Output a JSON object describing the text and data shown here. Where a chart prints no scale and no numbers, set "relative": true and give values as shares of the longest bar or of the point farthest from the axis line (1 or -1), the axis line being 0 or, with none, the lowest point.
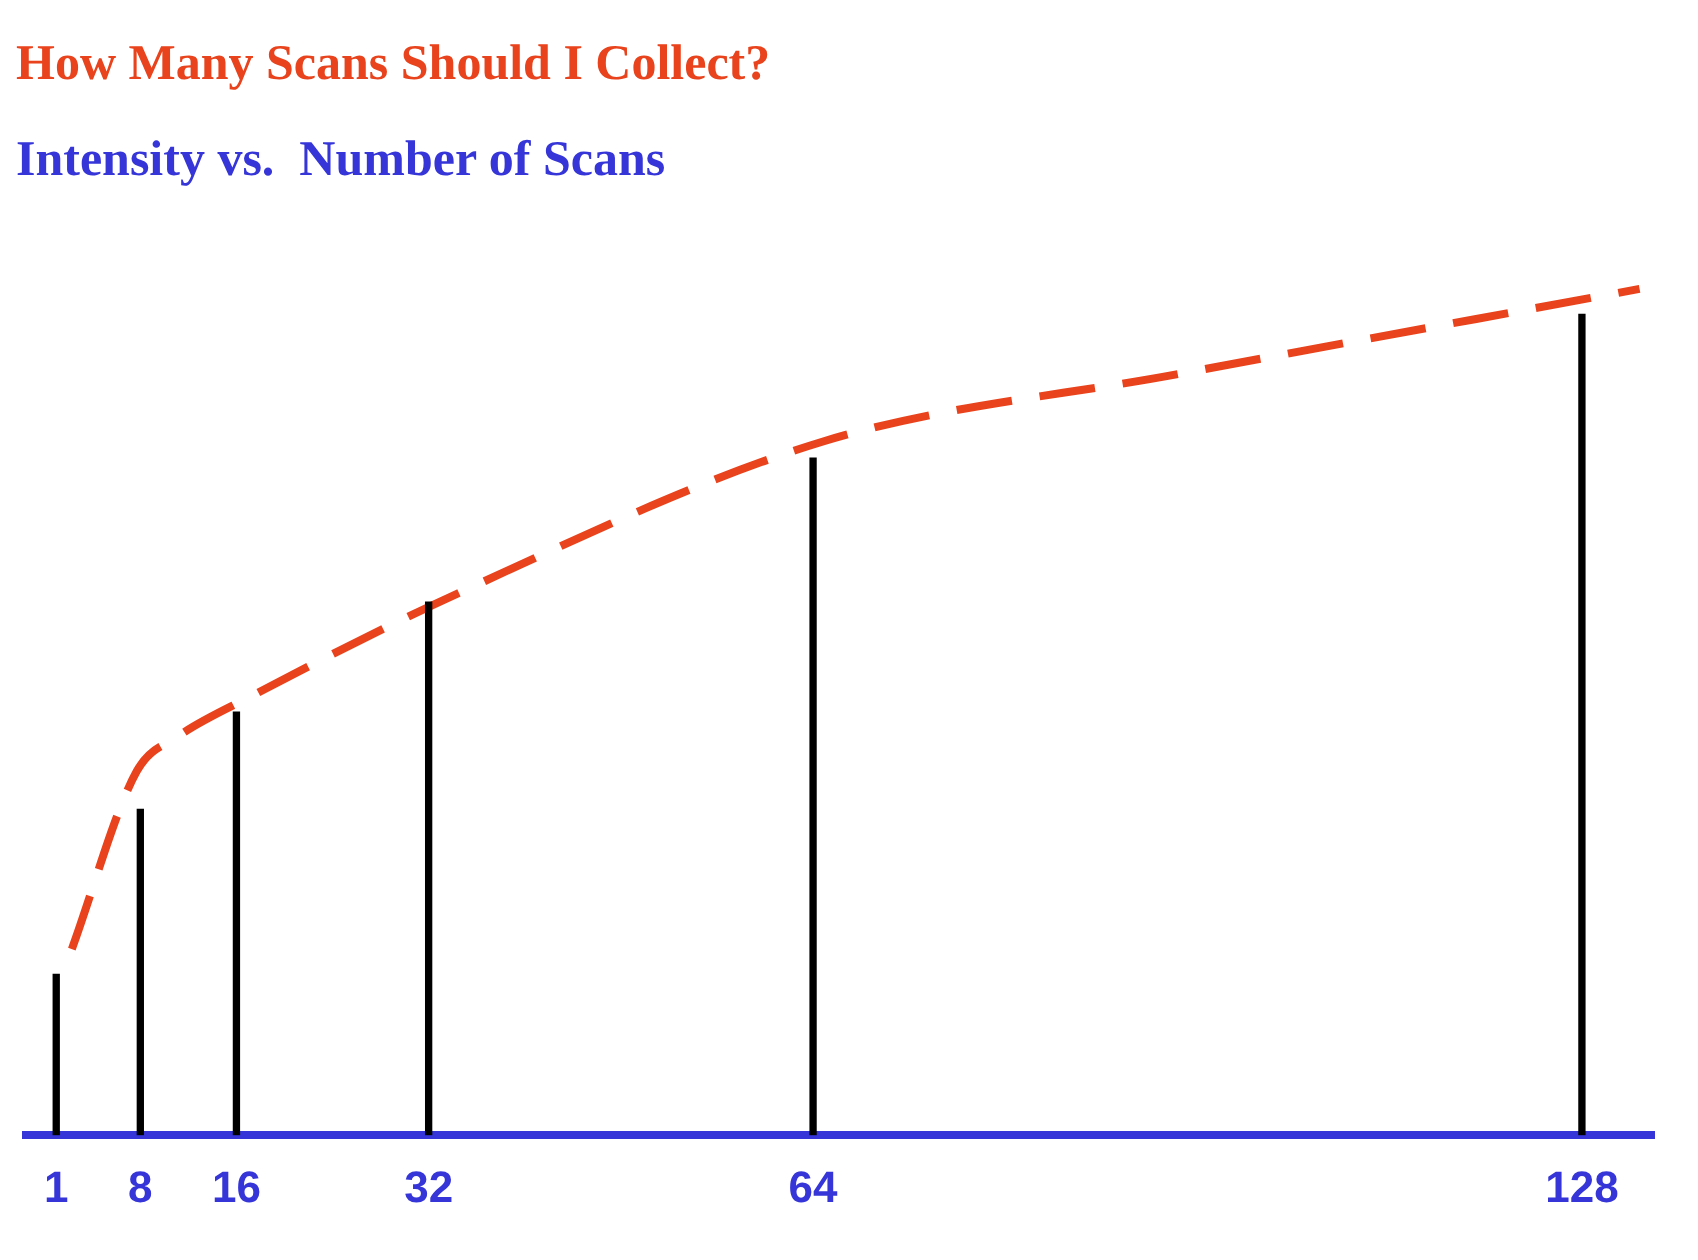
{
  "chart_data": {
    "type": "bar",
    "title": "How Many Scans Should I Collect?",
    "subtitle": "Intensity vs.  Number of Scans",
    "relative": true,
    "x": [
      1,
      8,
      16,
      32,
      64,
      128
    ],
    "xlim": [
      -1.5,
      134
    ],
    "xticks": [
      1,
      8,
      16,
      32,
      64,
      128
    ],
    "grid": false,
    "legend": false,
    "series": [
      {
        "color": "#000000",
        "values": [
          0.19,
          0.385,
          0.5,
          0.63,
          0.8,
          0.97
        ]
      },
      {
        "type": "line",
        "color": "#e8431c",
        "line_style": "dashed",
        "marker": "none",
        "x": [
          2.3,
          7.7,
          11,
          17.4,
          34.4,
          64.9,
          94.6,
          132.8
        ],
        "values": [
          0.22,
          0.43,
          0.47,
          0.52,
          0.64,
          0.82,
          0.9,
          1.0
        ]
      }
    ]
  }
}
